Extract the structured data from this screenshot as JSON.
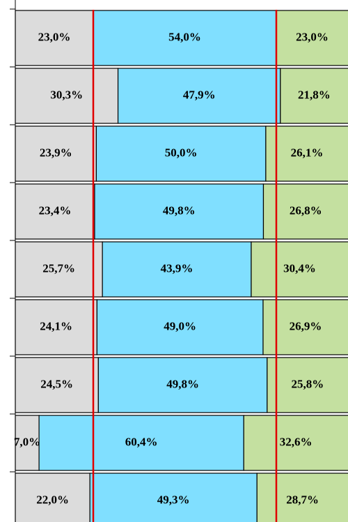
{
  "chart_data": {
    "type": "stacked-bar-horizontal",
    "xlim": [
      0,
      100
    ],
    "reference_lines": [
      23,
      77
    ],
    "reference_color": "#e00000",
    "series": [
      {
        "color": "#dcdcdc",
        "values": [
          23.0,
          30.3,
          23.9,
          23.4,
          25.7,
          24.1,
          24.5,
          7.0,
          22.0
        ],
        "value_labels": [
          "23,0%",
          "30,3%",
          "23,9%",
          "23,4%",
          "25,7%",
          "24,1%",
          "24,5%",
          "7,0%",
          "22,0%"
        ]
      },
      {
        "color": "#80dfff",
        "values": [
          54.0,
          47.9,
          50.0,
          49.8,
          43.9,
          49.0,
          49.8,
          60.4,
          49.3
        ],
        "value_labels": [
          "54,0%",
          "47,9%",
          "50,0%",
          "49,8%",
          "43,9%",
          "49,0%",
          "49,8%",
          "60,4%",
          "49,3%"
        ]
      },
      {
        "color": "#c4e0a0",
        "values": [
          23.0,
          21.8,
          26.1,
          26.8,
          30.4,
          26.9,
          25.8,
          32.6,
          28.7
        ],
        "value_labels": [
          "23,0%",
          "21,8%",
          "26,1%",
          "26,8%",
          "30,4%",
          "26,9%",
          "25,8%",
          "32,6%",
          "28,7%"
        ]
      }
    ]
  }
}
